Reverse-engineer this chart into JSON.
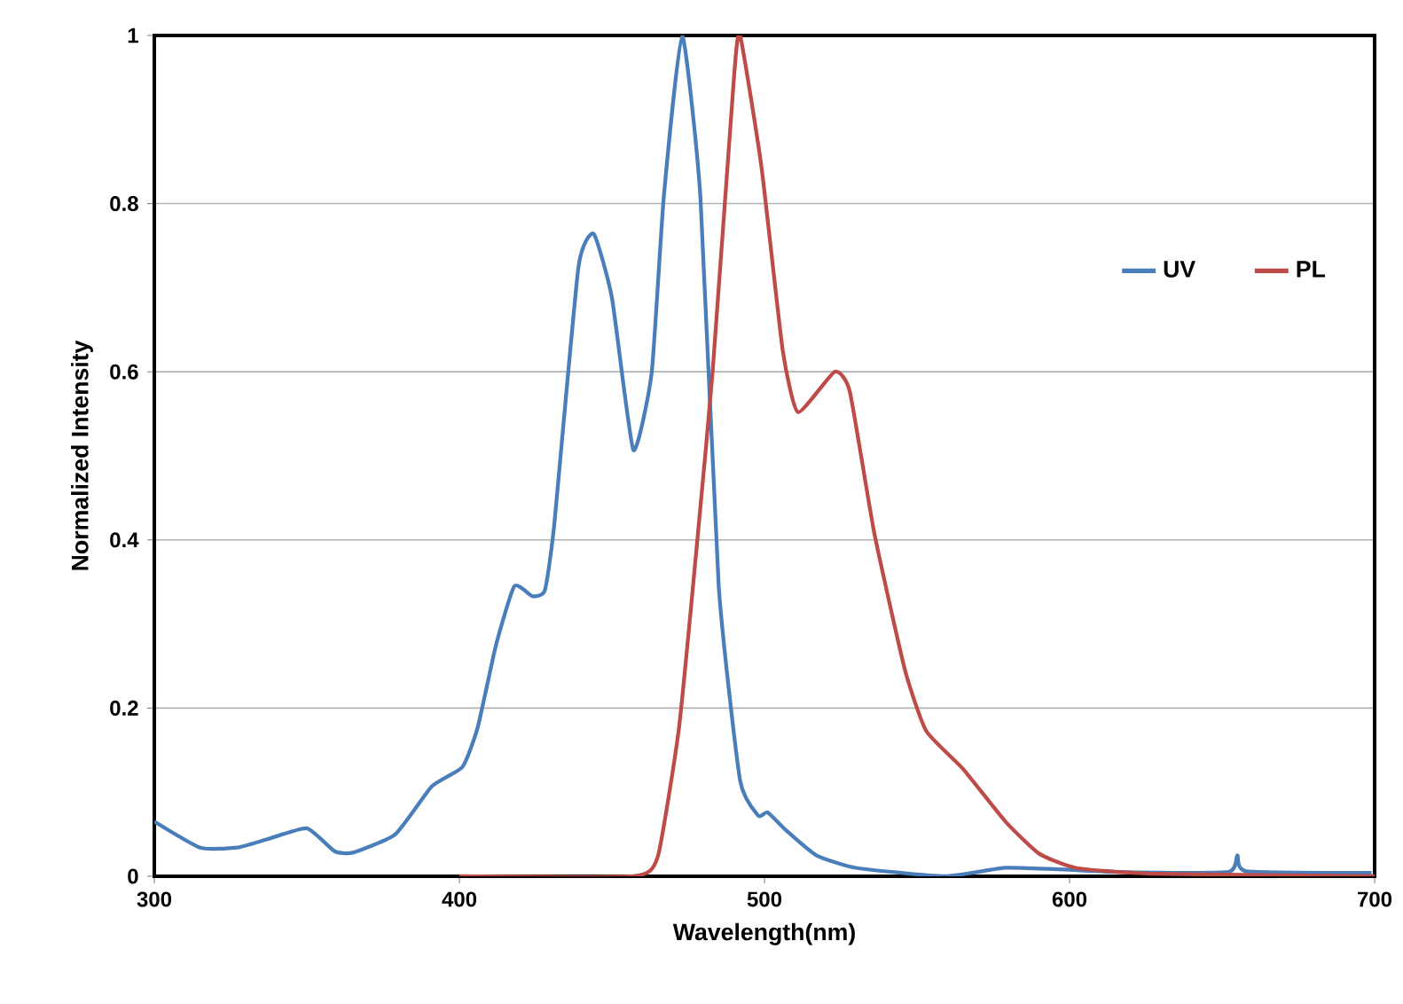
{
  "chart_data": {
    "type": "line",
    "xlabel": "Wavelength(nm)",
    "ylabel": "Normalized Intensity",
    "xlim": [
      300,
      700
    ],
    "xticks": [
      300,
      400,
      500,
      600,
      700
    ],
    "ylim": [
      0,
      1
    ],
    "yticks": [
      0,
      0.2,
      0.4,
      0.6,
      0.8,
      1
    ],
    "grid": "y",
    "legend": "right",
    "marker": "none",
    "line_style": "solid",
    "series": [
      {
        "name": "UV",
        "color": "#4a7ebb",
        "x": [
          300,
          315,
          327,
          337,
          350,
          359,
          365,
          379,
          391,
          401,
          406,
          412,
          418,
          424,
          428,
          431,
          439,
          444,
          450,
          457,
          463,
          467,
          473,
          479,
          485,
          492,
          498,
          501,
          507,
          517,
          530,
          559,
          579,
          598,
          617,
          652,
          655,
          658,
          699
        ],
        "values": [
          0.065,
          0.034,
          0.034,
          0.044,
          0.057,
          0.03,
          0.028,
          0.05,
          0.107,
          0.13,
          0.177,
          0.275,
          0.345,
          0.333,
          0.34,
          0.415,
          0.724,
          0.764,
          0.688,
          0.507,
          0.598,
          0.808,
          1.0,
          0.808,
          0.345,
          0.114,
          0.072,
          0.076,
          0.055,
          0.025,
          0.01,
          0.0,
          0.01,
          0.008,
          0.005,
          0.005,
          0.025,
          0.006,
          0.004
        ]
      },
      {
        "name": "PL",
        "color": "#be4b48",
        "x": [
          400,
          457,
          465,
          472,
          478,
          483,
          490,
          492,
          499,
          506,
          511,
          523,
          528,
          536,
          546,
          553,
          565,
          579,
          590,
          602,
          627,
          700
        ],
        "values": [
          0,
          0,
          0.023,
          0.177,
          0.4,
          0.6,
          0.95,
          1.0,
          0.844,
          0.625,
          0.552,
          0.6,
          0.576,
          0.408,
          0.246,
          0.173,
          0.128,
          0.065,
          0.027,
          0.01,
          0.003,
          0
        ]
      }
    ]
  }
}
